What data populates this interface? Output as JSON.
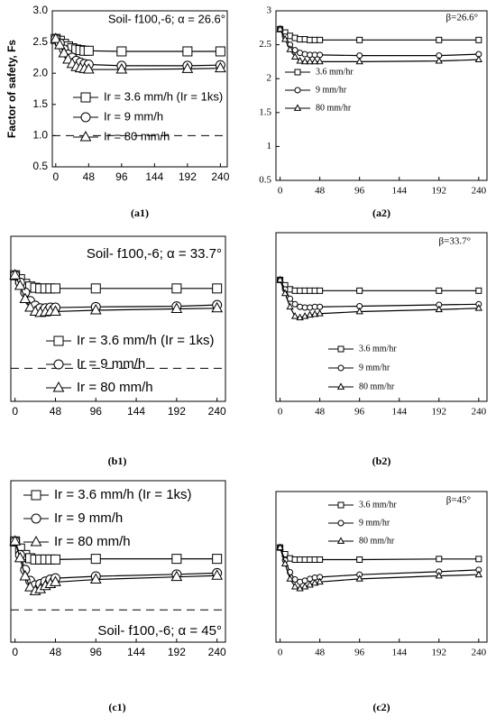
{
  "chart_data": [
    {
      "type": "line",
      "title": "Soil- f100,-6; α = 26.6°",
      "caption": "(a1)",
      "ylabel": "Factor of safety, Fs",
      "x": [
        0,
        6,
        12,
        18,
        24,
        30,
        36,
        42,
        48,
        96,
        192,
        240
      ],
      "xlim": [
        -5,
        250
      ],
      "xticks": [
        0,
        48,
        96,
        144,
        192,
        240
      ],
      "ylim": [
        0.5,
        3.0
      ],
      "yticks": [
        0.5,
        {
          "value": 1.0,
          "label": "1.0"
        },
        1.5,
        {
          "value": 2.0,
          "label": "2.0"
        },
        2.5,
        {
          "value": 3.0,
          "label": "3.0"
        }
      ],
      "hline": 1,
      "series": [
        {
          "name": "Ir = 3.6 mm/h (Ir = 1ks)",
          "marker": "square",
          "color": "#000000",
          "values": [
            2.55,
            2.52,
            2.47,
            2.43,
            2.4,
            2.38,
            2.37,
            2.36,
            2.36,
            2.35,
            2.35,
            2.35
          ]
        },
        {
          "name": "Ir = 9 mm/h",
          "marker": "circle",
          "color": "#000000",
          "values": [
            2.55,
            2.48,
            2.38,
            2.3,
            2.25,
            2.2,
            2.17,
            2.15,
            2.14,
            2.12,
            2.12,
            2.13
          ]
        },
        {
          "name": "Ir = 80 mm/h",
          "marker": "triangle",
          "color": "#000000",
          "values": [
            2.55,
            2.45,
            2.32,
            2.22,
            2.15,
            2.1,
            2.08,
            2.07,
            2.06,
            2.06,
            2.07,
            2.08
          ]
        }
      ]
    },
    {
      "type": "line",
      "title": "β=26.6°",
      "caption": "(a2)",
      "x": [
        0,
        6,
        12,
        18,
        24,
        30,
        36,
        42,
        48,
        96,
        192,
        240
      ],
      "xlim": [
        -5,
        250
      ],
      "xticks": [
        0,
        48,
        96,
        144,
        192,
        240
      ],
      "ylim": [
        0.5,
        3
      ],
      "yticks": [
        0.5,
        1,
        1.5,
        2,
        2.5,
        3
      ],
      "series": [
        {
          "name": "3.6 mm/hr",
          "marker": "square",
          "color": "#000000",
          "values": [
            2.73,
            2.68,
            2.63,
            2.6,
            2.58,
            2.58,
            2.57,
            2.57,
            2.57,
            2.57,
            2.57,
            2.57
          ]
        },
        {
          "name": "9 mm/hr",
          "marker": "circle",
          "color": "#000000",
          "values": [
            2.73,
            2.62,
            2.5,
            2.42,
            2.38,
            2.36,
            2.35,
            2.35,
            2.35,
            2.34,
            2.34,
            2.36
          ]
        },
        {
          "name": "80 mm/hr",
          "marker": "triangle",
          "color": "#000000",
          "values": [
            2.73,
            2.58,
            2.43,
            2.32,
            2.26,
            2.25,
            2.25,
            2.25,
            2.25,
            2.25,
            2.26,
            2.28
          ]
        }
      ]
    },
    {
      "type": "line",
      "title": "Soil- f100,-6; α = 33.7°",
      "caption": "(b1)",
      "x": [
        0,
        6,
        12,
        18,
        24,
        30,
        36,
        42,
        48,
        96,
        192,
        240
      ],
      "xlim": [
        -5,
        250
      ],
      "xticks": [
        0,
        48,
        96,
        144,
        192,
        240
      ],
      "ylim": [
        0.5,
        3.0
      ],
      "hline": 1,
      "series": [
        {
          "name": "Ir = 3.6 mm/h (Ir = 1ks)",
          "marker": "square",
          "color": "#000000",
          "values": [
            2.41,
            2.35,
            2.28,
            2.24,
            2.22,
            2.21,
            2.21,
            2.21,
            2.21,
            2.21,
            2.21,
            2.21
          ]
        },
        {
          "name": "Ir = 9 mm/h",
          "marker": "circle",
          "color": "#000000",
          "values": [
            2.41,
            2.3,
            2.15,
            2.02,
            1.95,
            1.91,
            1.91,
            1.92,
            1.92,
            1.93,
            1.94,
            1.96
          ]
        },
        {
          "name": "Ir = 80 mm/h",
          "marker": "triangle",
          "color": "#000000",
          "values": [
            2.41,
            2.25,
            2.05,
            1.92,
            1.86,
            1.84,
            1.85,
            1.86,
            1.86,
            1.88,
            1.9,
            1.91
          ]
        }
      ]
    },
    {
      "type": "line",
      "title": "β=33.7°",
      "caption": "(b2)",
      "x": [
        0,
        6,
        12,
        18,
        24,
        30,
        36,
        42,
        48,
        96,
        192,
        240
      ],
      "xlim": [
        -5,
        250
      ],
      "xticks": [
        0,
        48,
        96,
        144,
        192,
        240
      ],
      "ylim": [
        0.5,
        3
      ],
      "series": [
        {
          "name": "3.6 mm/hr",
          "marker": "square",
          "color": "#000000",
          "values": [
            2.3,
            2.22,
            2.16,
            2.14,
            2.14,
            2.14,
            2.14,
            2.14,
            2.14,
            2.14,
            2.14,
            2.14
          ]
        },
        {
          "name": "9 mm/hr",
          "marker": "circle",
          "color": "#000000",
          "values": [
            2.3,
            2.16,
            2.02,
            1.94,
            1.9,
            1.89,
            1.89,
            1.9,
            1.9,
            1.91,
            1.93,
            1.94
          ]
        },
        {
          "name": "80 mm/hr",
          "marker": "triangle",
          "color": "#000000",
          "values": [
            2.3,
            2.1,
            1.9,
            1.76,
            1.74,
            1.76,
            1.78,
            1.79,
            1.8,
            1.83,
            1.86,
            1.88
          ]
        }
      ]
    },
    {
      "type": "line",
      "title": "Soil- f100,-6; α = 45°",
      "caption": "(c1)",
      "x": [
        0,
        6,
        12,
        18,
        24,
        30,
        36,
        42,
        48,
        96,
        192,
        240
      ],
      "xlim": [
        -5,
        250
      ],
      "xticks": [
        0,
        48,
        96,
        144,
        192,
        240
      ],
      "ylim": [
        0.5,
        3.0
      ],
      "hline": 1,
      "series": [
        {
          "name": "Ir = 3.6 mm/h (Ir = 1ks)",
          "marker": "square",
          "color": "#000000",
          "values": [
            2.06,
            1.95,
            1.85,
            1.8,
            1.78,
            1.78,
            1.78,
            1.78,
            1.78,
            1.79,
            1.79,
            1.79
          ]
        },
        {
          "name": "Ir = 9 mm/h",
          "marker": "circle",
          "color": "#000000",
          "values": [
            2.06,
            1.85,
            1.62,
            1.45,
            1.38,
            1.4,
            1.44,
            1.47,
            1.49,
            1.52,
            1.55,
            1.57
          ]
        },
        {
          "name": "Ir = 80 mm/h",
          "marker": "triangle",
          "color": "#000000",
          "values": [
            2.06,
            1.8,
            1.52,
            1.35,
            1.29,
            1.32,
            1.37,
            1.4,
            1.43,
            1.47,
            1.51,
            1.53
          ]
        }
      ]
    },
    {
      "type": "line",
      "title": "β=45°",
      "caption": "(c2)",
      "x": [
        0,
        6,
        12,
        18,
        24,
        30,
        36,
        42,
        48,
        96,
        192,
        240
      ],
      "xlim": [
        -5,
        250
      ],
      "xticks": [
        0,
        48,
        96,
        144,
        192,
        240
      ],
      "ylim": [
        0.5,
        3
      ],
      "series": [
        {
          "name": "3.6 mm/hr",
          "marker": "square",
          "color": "#000000",
          "values": [
            2.07,
            1.96,
            1.89,
            1.87,
            1.87,
            1.87,
            1.87,
            1.87,
            1.87,
            1.87,
            1.88,
            1.88
          ]
        },
        {
          "name": "9 mm/hr",
          "marker": "circle",
          "color": "#000000",
          "values": [
            2.07,
            1.86,
            1.66,
            1.54,
            1.5,
            1.52,
            1.55,
            1.57,
            1.58,
            1.62,
            1.67,
            1.7
          ]
        },
        {
          "name": "80 mm/hr",
          "marker": "triangle",
          "color": "#000000",
          "values": [
            2.07,
            1.8,
            1.55,
            1.42,
            1.39,
            1.42,
            1.45,
            1.48,
            1.5,
            1.55,
            1.6,
            1.62
          ]
        }
      ]
    }
  ]
}
